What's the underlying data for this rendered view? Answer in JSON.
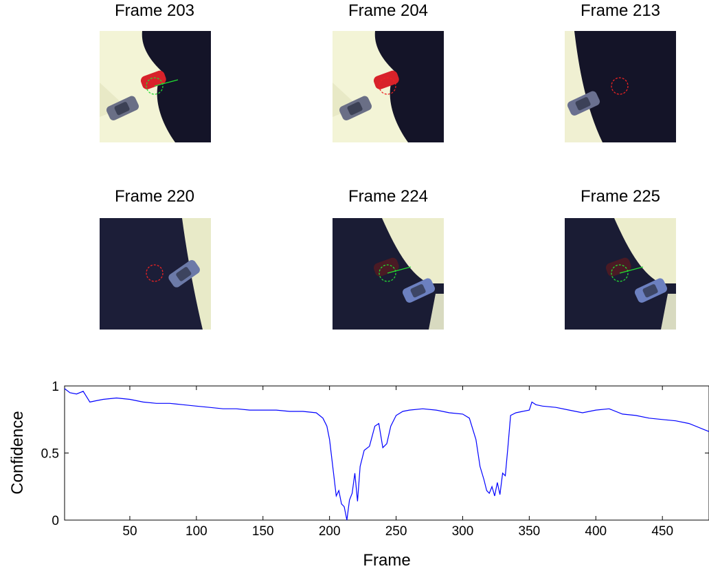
{
  "frames": [
    {
      "title": "Frame 203",
      "scene": "bright",
      "marker": "green",
      "heading": true,
      "car_visible": true
    },
    {
      "title": "Frame 204",
      "scene": "bright",
      "marker": "red",
      "heading": false,
      "car_visible": true
    },
    {
      "title": "Frame 213",
      "scene": "dark",
      "marker": "red",
      "heading": false,
      "car_visible": false
    },
    {
      "title": "Frame 220",
      "scene": "dark2",
      "marker": "red",
      "heading": false,
      "car_visible": false
    },
    {
      "title": "Frame 224",
      "scene": "dark3",
      "marker": "green",
      "heading": true,
      "car_visible": true
    },
    {
      "title": "Frame 225",
      "scene": "dark3",
      "marker": "green",
      "heading": true,
      "car_visible": true
    }
  ],
  "colors": {
    "marker_green": "#22dd33",
    "marker_red": "#ee2222",
    "line": "#0000ff"
  },
  "chart_data": {
    "type": "line",
    "title": "",
    "xlabel": "Frame",
    "ylabel": "Confidence",
    "xlim": [
      1,
      485
    ],
    "ylim": [
      0,
      1
    ],
    "xticks": [
      50,
      100,
      150,
      200,
      250,
      300,
      350,
      400,
      450
    ],
    "yticks": [
      0,
      0.5,
      1
    ],
    "ytick_labels": [
      "0",
      "0.5",
      "1"
    ],
    "grid": false,
    "series": [
      {
        "x": [
          1,
          5,
          10,
          15,
          20,
          25,
          30,
          40,
          50,
          60,
          70,
          80,
          90,
          100,
          110,
          120,
          130,
          140,
          150,
          160,
          170,
          180,
          190,
          195,
          198,
          200,
          203,
          205,
          207,
          209,
          211,
          213,
          215,
          217,
          219,
          221,
          223,
          226,
          230,
          234,
          237,
          240,
          243,
          246,
          250,
          255,
          260,
          270,
          280,
          290,
          300,
          305,
          310,
          313,
          316,
          318,
          320,
          322,
          324,
          326,
          328,
          330,
          332,
          334,
          336,
          340,
          345,
          350,
          352,
          355,
          360,
          370,
          380,
          390,
          400,
          410,
          420,
          430,
          440,
          450,
          460,
          470,
          480,
          485
        ],
        "y": [
          0.98,
          0.95,
          0.94,
          0.96,
          0.88,
          0.89,
          0.9,
          0.91,
          0.9,
          0.88,
          0.87,
          0.87,
          0.86,
          0.85,
          0.84,
          0.83,
          0.83,
          0.82,
          0.82,
          0.82,
          0.81,
          0.81,
          0.8,
          0.76,
          0.7,
          0.6,
          0.35,
          0.18,
          0.22,
          0.12,
          0.1,
          0.0,
          0.15,
          0.2,
          0.35,
          0.14,
          0.4,
          0.52,
          0.55,
          0.7,
          0.72,
          0.54,
          0.57,
          0.7,
          0.78,
          0.81,
          0.82,
          0.83,
          0.82,
          0.8,
          0.79,
          0.76,
          0.6,
          0.4,
          0.3,
          0.22,
          0.2,
          0.25,
          0.18,
          0.28,
          0.19,
          0.35,
          0.33,
          0.55,
          0.78,
          0.8,
          0.81,
          0.82,
          0.88,
          0.86,
          0.85,
          0.84,
          0.82,
          0.8,
          0.82,
          0.83,
          0.79,
          0.78,
          0.76,
          0.75,
          0.74,
          0.72,
          0.68,
          0.66
        ]
      }
    ]
  }
}
